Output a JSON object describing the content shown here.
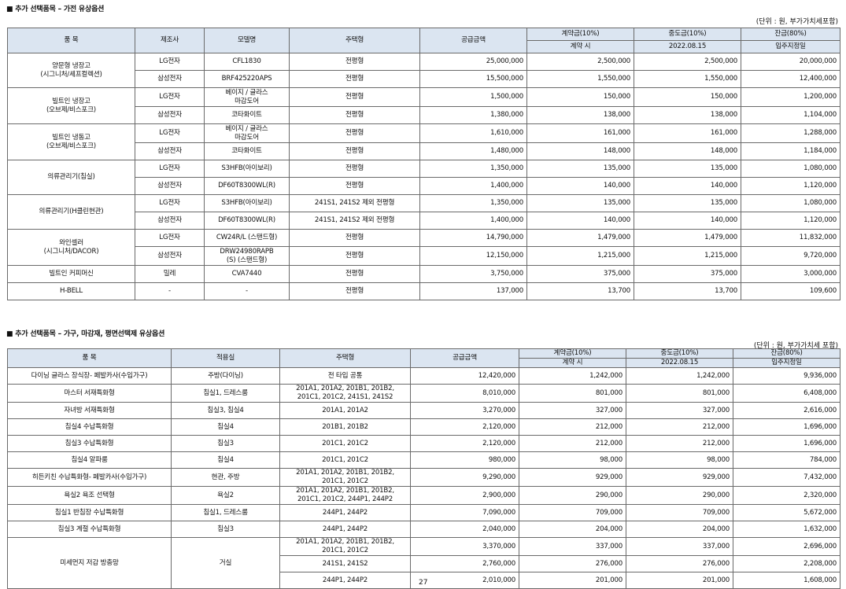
{
  "section1": {
    "title": "■ 추가 선택품목 – 가전 유상옵션",
    "unit": "(단위 : 원, 부가가치세포함)",
    "headers": {
      "item": "품 목",
      "maker": "제조사",
      "model": "모델명",
      "housing": "주택형",
      "supply": "공급금액",
      "contract": "계약금(10%)",
      "contract_sub": "계약 시",
      "middle": "중도금(10%)",
      "middle_sub": "2022.08.15",
      "balance": "잔금(80%)",
      "balance_sub": "입주지정일"
    },
    "groups": [
      {
        "name": "양문형 냉장고\n(시그니처/셰프컬렉션)",
        "rows": [
          {
            "maker": "LG전자",
            "model": "CFL1830",
            "housing": "전평형",
            "supply": "25,000,000",
            "contract": "2,500,000",
            "middle": "2,500,000",
            "balance": "20,000,000"
          },
          {
            "maker": "삼성전자",
            "model": "BRF425220APS",
            "housing": "전평형",
            "supply": "15,500,000",
            "contract": "1,550,000",
            "middle": "1,550,000",
            "balance": "12,400,000"
          }
        ]
      },
      {
        "name": "빌트인 냉장고\n(오브제/비스포크)",
        "rows": [
          {
            "maker": "LG전자",
            "model": "베이지 / 글라스\n마감도어",
            "housing": "전평형",
            "supply": "1,500,000",
            "contract": "150,000",
            "middle": "150,000",
            "balance": "1,200,000"
          },
          {
            "maker": "삼성전자",
            "model": "코타화이트",
            "housing": "전평형",
            "supply": "1,380,000",
            "contract": "138,000",
            "middle": "138,000",
            "balance": "1,104,000"
          }
        ]
      },
      {
        "name": "빌트인 냉동고\n(오브제/비스포크)",
        "rows": [
          {
            "maker": "LG전자",
            "model": "베이지 / 글라스\n마감도어",
            "housing": "전평형",
            "supply": "1,610,000",
            "contract": "161,000",
            "middle": "161,000",
            "balance": "1,288,000"
          },
          {
            "maker": "삼성전자",
            "model": "코타화이트",
            "housing": "전평형",
            "supply": "1,480,000",
            "contract": "148,000",
            "middle": "148,000",
            "balance": "1,184,000"
          }
        ]
      },
      {
        "name": "의류관리기(침실)",
        "rows": [
          {
            "maker": "LG전자",
            "model": "S3HFB(아이보리)",
            "housing": "전평형",
            "supply": "1,350,000",
            "contract": "135,000",
            "middle": "135,000",
            "balance": "1,080,000"
          },
          {
            "maker": "삼성전자",
            "model": "DF60T8300WL(R)",
            "housing": "전평형",
            "supply": "1,400,000",
            "contract": "140,000",
            "middle": "140,000",
            "balance": "1,120,000"
          }
        ]
      },
      {
        "name": "의류관리기(H클린현관)",
        "rows": [
          {
            "maker": "LG전자",
            "model": "S3HFB(아이보리)",
            "housing": "241S1, 241S2 제외 전평형",
            "supply": "1,350,000",
            "contract": "135,000",
            "middle": "135,000",
            "balance": "1,080,000"
          },
          {
            "maker": "삼성전자",
            "model": "DF60T8300WL(R)",
            "housing": "241S1, 241S2 제외 전평형",
            "supply": "1,400,000",
            "contract": "140,000",
            "middle": "140,000",
            "balance": "1,120,000"
          }
        ]
      },
      {
        "name": "와인셀러\n(시그니처/DACOR)",
        "rows": [
          {
            "maker": "LG전자",
            "model": "CW24R/L (스탠드형)",
            "housing": "전평형",
            "supply": "14,790,000",
            "contract": "1,479,000",
            "middle": "1,479,000",
            "balance": "11,832,000"
          },
          {
            "maker": "삼성전자",
            "model": "DRW24980RAPB\n(S) (스탠드형)",
            "housing": "전평형",
            "supply": "12,150,000",
            "contract": "1,215,000",
            "middle": "1,215,000",
            "balance": "9,720,000"
          }
        ]
      },
      {
        "name": "빌트인 커피머신",
        "rows": [
          {
            "maker": "밀레",
            "model": "CVA7440",
            "housing": "전평형",
            "supply": "3,750,000",
            "contract": "375,000",
            "middle": "375,000",
            "balance": "3,000,000"
          }
        ]
      },
      {
        "name": "H-BELL",
        "rows": [
          {
            "maker": "-",
            "model": "-",
            "housing": "전평형",
            "supply": "137,000",
            "contract": "13,700",
            "middle": "13,700",
            "balance": "109,600"
          }
        ]
      }
    ]
  },
  "section2": {
    "title": "■ 추가 선택품목 – 가구, 마감재, 평면선택제 유상옵션",
    "unit": "(단위 : 원, 부가가치세 포함)",
    "headers": {
      "item": "품 목",
      "room": "적용실",
      "housing": "주택형",
      "supply": "공급금액",
      "contract": "계약금(10%)",
      "contract_sub": "계약 시",
      "middle": "중도금(10%)",
      "middle_sub": "2022.08.15",
      "balance": "잔금(80%)",
      "balance_sub": "입주지정일"
    },
    "rows": [
      {
        "item": "다이닝 글라스 장식장- 페발카사(수입가구)",
        "room": "주방(다이닝)",
        "housing": "전 타입 공통",
        "supply": "12,420,000",
        "contract": "1,242,000",
        "middle": "1,242,000",
        "balance": "9,936,000"
      },
      {
        "item": "마스터 서재특화형",
        "room": "침실1, 드레스룸",
        "housing": "201A1, 201A2, 201B1, 201B2,\n201C1, 201C2, 241S1, 241S2",
        "supply": "8,010,000",
        "contract": "801,000",
        "middle": "801,000",
        "balance": "6,408,000"
      },
      {
        "item": "자녀방 서재특화형",
        "room": "침실3, 침실4",
        "housing": "201A1, 201A2",
        "supply": "3,270,000",
        "contract": "327,000",
        "middle": "327,000",
        "balance": "2,616,000"
      },
      {
        "item": "침실4 수납특화형",
        "room": "침실4",
        "housing": "201B1, 201B2",
        "supply": "2,120,000",
        "contract": "212,000",
        "middle": "212,000",
        "balance": "1,696,000"
      },
      {
        "item": "침실3 수납특화형",
        "room": "침실3",
        "housing": "201C1, 201C2",
        "supply": "2,120,000",
        "contract": "212,000",
        "middle": "212,000",
        "balance": "1,696,000"
      },
      {
        "item": "침실4 알파룸",
        "room": "침실4",
        "housing": "201C1, 201C2",
        "supply": "980,000",
        "contract": "98,000",
        "middle": "98,000",
        "balance": "784,000"
      },
      {
        "item": "히든키친 수납특화형- 페발카사(수입가구)",
        "room": "현관, 주방",
        "housing": "201A1, 201A2, 201B1, 201B2,\n201C1, 201C2",
        "supply": "9,290,000",
        "contract": "929,000",
        "middle": "929,000",
        "balance": "7,432,000"
      },
      {
        "item": "욕실2 욕조 선택형",
        "room": "욕실2",
        "housing": "201A1, 201A2, 201B1, 201B2,\n201C1, 201C2, 244P1, 244P2",
        "supply": "2,900,000",
        "contract": "290,000",
        "middle": "290,000",
        "balance": "2,320,000"
      },
      {
        "item": "침실1 반침장 수납특화형",
        "room": "침실1, 드레스룸",
        "housing": "244P1, 244P2",
        "supply": "7,090,000",
        "contract": "709,000",
        "middle": "709,000",
        "balance": "5,672,000"
      },
      {
        "item": "침실3 계절 수납특화형",
        "room": "침실3",
        "housing": "244P1, 244P2",
        "supply": "2,040,000",
        "contract": "204,000",
        "middle": "204,000",
        "balance": "1,632,000"
      }
    ],
    "dust_group": {
      "item": "미세먼지 저감 방충망",
      "room": "거실",
      "rows": [
        {
          "housing": "201A1, 201A2, 201B1, 201B2,\n201C1, 201C2",
          "supply": "3,370,000",
          "contract": "337,000",
          "middle": "337,000",
          "balance": "2,696,000"
        },
        {
          "housing": "241S1, 241S2",
          "supply": "2,760,000",
          "contract": "276,000",
          "middle": "276,000",
          "balance": "2,208,000"
        },
        {
          "housing": "244P1, 244P2",
          "supply": "2,010,000",
          "contract": "201,000",
          "middle": "201,000",
          "balance": "1,608,000"
        }
      ]
    }
  },
  "page_number": "27"
}
